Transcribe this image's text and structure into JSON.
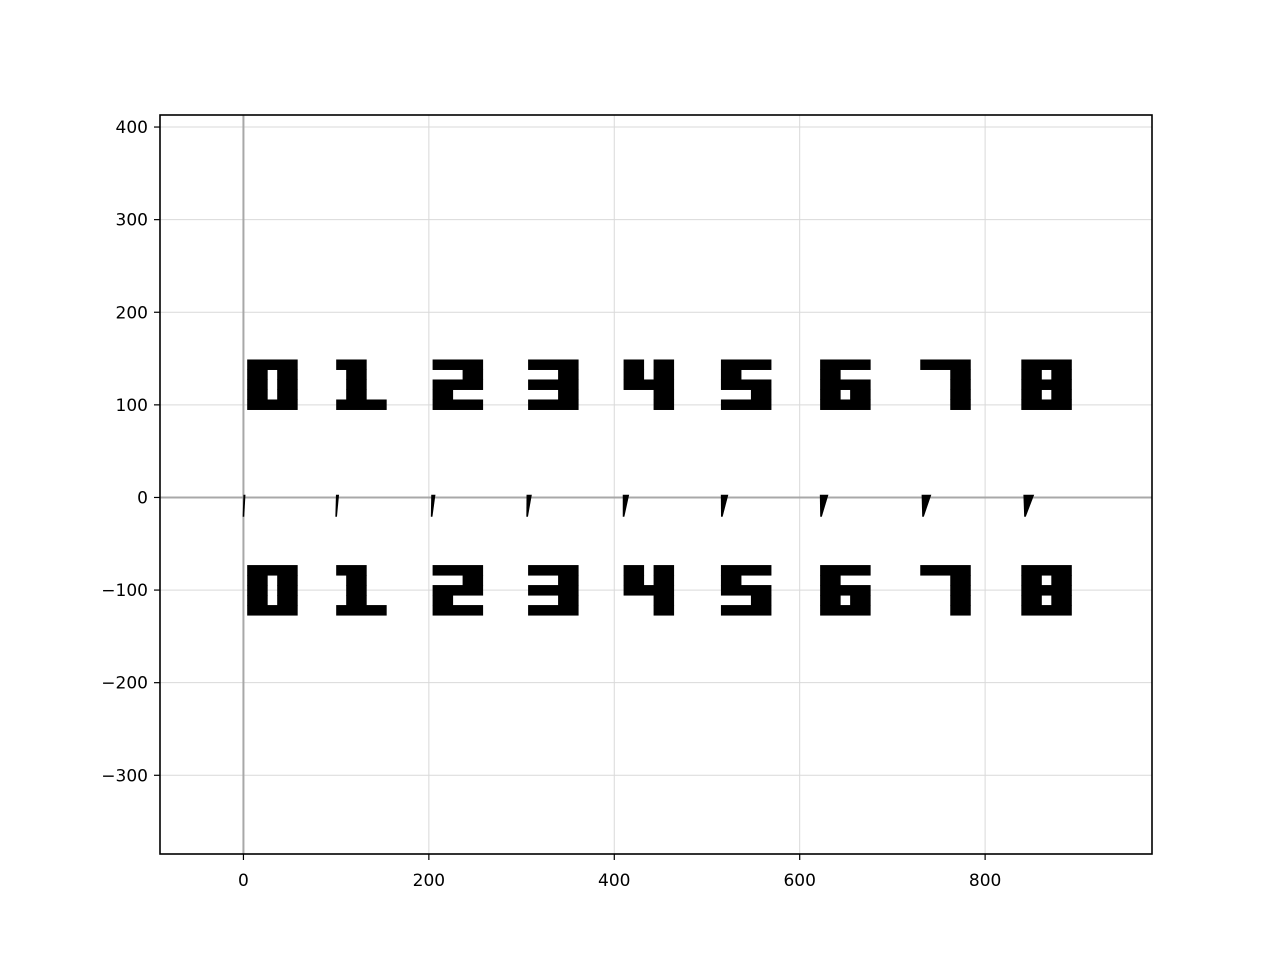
{
  "chart_data": {
    "type": "scatter",
    "title": "",
    "xlabel": "",
    "ylabel": "",
    "xlim": [
      -90,
      980
    ],
    "ylim": [
      -385,
      413
    ],
    "grid": true,
    "x_ticks": [
      0,
      200,
      400,
      600,
      800
    ],
    "y_ticks": [
      400,
      300,
      200,
      100,
      0,
      -100,
      -200,
      -300
    ],
    "x_tick_labels": [
      "0",
      "200",
      "400",
      "600",
      "800"
    ],
    "y_tick_labels": [
      "400",
      "300",
      "200",
      "100",
      "0",
      "−100",
      "−200",
      "−300"
    ],
    "series": [
      {
        "marker": "digit glyphs",
        "x": [
          31,
          127,
          231,
          334,
          437,
          542,
          649,
          757,
          866
        ],
        "y": [
          122,
          122,
          122,
          122,
          122,
          122,
          122,
          122,
          122
        ],
        "labels": [
          "0",
          "1",
          "2",
          "3",
          "4",
          "5",
          "6",
          "7",
          "8"
        ]
      },
      {
        "marker": "thin slanted wedges",
        "x": [
          0,
          100,
          203,
          306,
          410,
          516,
          623,
          733,
          843
        ],
        "y": [
          -10,
          -10,
          -10,
          -10,
          -10,
          -10,
          -10,
          -10,
          -10
        ],
        "rotation_deg": [
          0,
          1,
          2,
          3,
          4,
          5,
          6,
          7,
          8
        ]
      },
      {
        "marker": "digit glyphs",
        "x": [
          31,
          127,
          231,
          334,
          437,
          542,
          649,
          757,
          866
        ],
        "y": [
          -100,
          -100,
          -100,
          -100,
          -100,
          -100,
          -100,
          -100,
          -100
        ],
        "labels": [
          "0",
          "1",
          "2",
          "3",
          "4",
          "5",
          "6",
          "7",
          "8"
        ]
      }
    ]
  }
}
